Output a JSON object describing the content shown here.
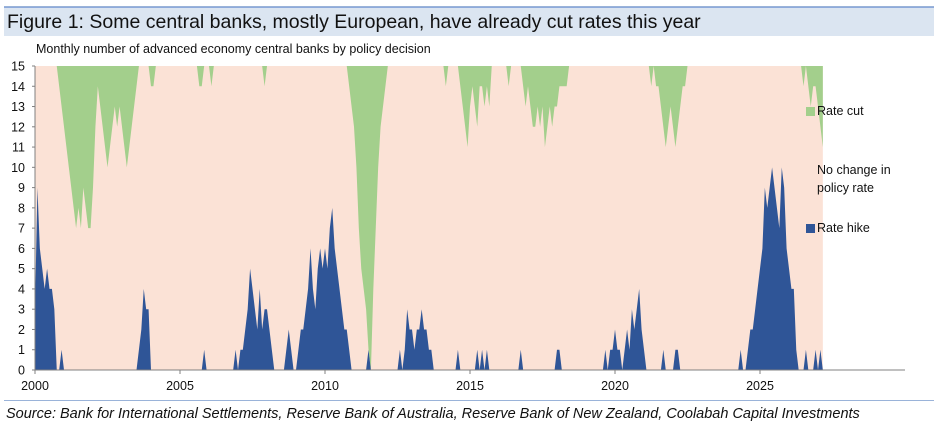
{
  "header": {
    "title": "Figure 1: Some central banks, mostly European, have already cut rates this year",
    "subtitle": "Monthly number of advanced economy central banks by policy decision"
  },
  "source": "Source: Bank for International Settlements, Reserve Bank of Australia, Reserve Bank of New Zealand, Coolabah Capital Investments",
  "colors": {
    "cut": "#a3cf8c",
    "no_change": "#fbe2d6",
    "hike": "#2f5597",
    "axis": "#808080",
    "title_bg": "#dbe5f1"
  },
  "chart_data": {
    "type": "area",
    "stacked": true,
    "title": "Monthly number of advanced economy central banks by policy decision",
    "ylim": [
      0,
      15
    ],
    "yticks": [
      "0",
      "1",
      "2",
      "3",
      "4",
      "5",
      "6",
      "7",
      "8",
      "9",
      "10",
      "11",
      "12",
      "13",
      "14",
      "15"
    ],
    "xlim": [
      2000,
      2030
    ],
    "xticks": [
      "2000",
      "2005",
      "2010",
      "2015",
      "2020",
      "2025"
    ],
    "total_banks": 15,
    "x_start": 2000.0,
    "x_step_months": 1,
    "series": [
      {
        "name": "Rate cut",
        "color_key": "cut"
      },
      {
        "name": "No change in policy rate",
        "color_key": "no_change"
      },
      {
        "name": "Rate hike",
        "color_key": "hike"
      }
    ],
    "legend": [
      {
        "label_lines": [
          "Rate cut"
        ],
        "color_key": "cut"
      },
      {
        "label_lines": [
          "No change in",
          "policy rate"
        ],
        "color_key": "no_change"
      },
      {
        "label_lines": [
          "Rate hike"
        ],
        "color_key": "hike"
      }
    ],
    "hike_values": [
      3,
      9,
      6,
      5,
      4,
      5,
      4,
      4,
      3,
      0,
      0,
      1,
      0,
      0,
      0,
      0,
      0,
      0,
      0,
      0,
      0,
      0,
      0,
      0,
      0,
      0,
      0,
      0,
      0,
      0,
      0,
      0,
      0,
      0,
      0,
      0,
      0,
      0,
      0,
      0,
      0,
      0,
      0,
      1,
      2,
      4,
      3,
      3,
      0,
      0,
      0,
      0,
      0,
      0,
      0,
      0,
      0,
      0,
      0,
      0,
      0,
      0,
      0,
      0,
      0,
      0,
      0,
      0,
      0,
      0,
      1,
      0,
      0,
      0,
      0,
      0,
      0,
      0,
      0,
      0,
      0,
      0,
      0,
      1,
      0,
      1,
      1,
      2,
      3,
      5,
      4,
      3,
      2,
      4,
      2,
      3,
      3,
      2,
      1,
      0,
      0,
      0,
      0,
      0,
      1,
      2,
      1,
      0,
      0,
      1,
      2,
      2,
      3,
      4,
      6,
      4,
      3,
      5,
      6,
      5,
      6,
      5,
      7,
      8,
      6,
      5,
      4,
      3,
      2,
      2,
      1,
      0,
      0,
      0,
      0,
      0,
      0,
      0,
      1,
      0,
      0,
      0,
      0,
      0,
      0,
      0,
      0,
      0,
      0,
      0,
      0,
      1,
      0,
      1,
      3,
      2,
      2,
      1,
      2,
      2,
      3,
      2,
      2,
      1,
      1,
      0,
      0,
      0,
      0,
      0,
      0,
      0,
      0,
      0,
      0,
      1,
      0,
      0,
      0,
      0,
      0,
      0,
      0,
      1,
      0,
      1,
      0,
      1,
      0,
      0,
      0,
      0,
      0,
      0,
      0,
      0,
      0,
      0,
      0,
      0,
      0,
      1,
      0,
      0,
      0,
      0,
      0,
      0,
      0,
      0,
      0,
      0,
      0,
      0,
      0,
      0,
      1,
      1,
      0,
      0,
      0,
      0,
      0,
      0,
      0,
      0,
      0,
      0,
      0,
      0,
      0,
      0,
      0,
      0,
      0,
      0,
      1,
      0,
      1,
      1,
      2,
      1,
      1,
      0,
      1,
      2,
      1,
      3,
      2,
      3,
      4,
      2,
      1,
      0,
      0,
      0,
      0,
      0,
      0,
      0,
      1,
      0,
      0,
      0,
      0,
      1,
      1,
      0,
      0,
      0,
      0,
      0,
      0,
      0,
      0,
      0,
      0,
      0,
      0,
      0,
      0,
      0,
      0,
      0,
      0,
      0,
      0,
      0,
      0,
      0,
      0,
      0,
      1,
      0,
      0,
      1,
      2,
      2,
      3,
      4,
      5,
      6,
      9,
      8,
      9,
      10,
      9,
      8,
      7,
      10,
      9,
      6,
      5,
      4,
      4,
      1,
      0,
      0,
      0,
      1,
      0,
      0,
      0,
      1,
      0,
      1,
      0
    ],
    "cut_values": [
      0,
      0,
      0,
      0,
      0,
      0,
      0,
      0,
      0,
      0,
      1,
      2,
      3,
      4,
      5,
      6,
      7,
      8,
      7,
      8,
      6,
      7,
      8,
      8,
      6,
      3,
      1,
      2,
      3,
      4,
      5,
      4,
      3,
      2,
      3,
      2,
      3,
      4,
      5,
      4,
      3,
      2,
      1,
      0,
      0,
      0,
      0,
      0,
      1,
      1,
      0,
      0,
      0,
      0,
      0,
      0,
      0,
      0,
      0,
      0,
      0,
      0,
      0,
      0,
      0,
      0,
      0,
      0,
      1,
      1,
      0,
      0,
      0,
      1,
      0,
      0,
      0,
      0,
      0,
      0,
      0,
      0,
      0,
      0,
      0,
      0,
      0,
      0,
      0,
      0,
      0,
      0,
      0,
      0,
      0,
      1,
      0,
      0,
      0,
      0,
      0,
      0,
      0,
      0,
      0,
      0,
      0,
      0,
      0,
      0,
      0,
      0,
      0,
      0,
      0,
      0,
      0,
      0,
      0,
      0,
      0,
      0,
      0,
      0,
      0,
      0,
      0,
      0,
      0,
      0,
      1,
      2,
      3,
      5,
      8,
      10,
      11,
      12,
      14,
      15,
      11,
      8,
      5,
      3,
      2,
      1,
      0,
      0,
      0,
      0,
      0,
      0,
      0,
      0,
      0,
      0,
      0,
      0,
      0,
      0,
      0,
      0,
      0,
      0,
      0,
      0,
      0,
      0,
      0,
      0,
      1,
      0,
      0,
      0,
      0,
      0,
      1,
      2,
      3,
      4,
      2,
      1,
      2,
      3,
      1,
      1,
      2,
      1,
      2,
      0,
      0,
      0,
      0,
      0,
      0,
      0,
      1,
      0,
      0,
      0,
      0,
      0,
      1,
      2,
      1,
      2,
      3,
      3,
      2,
      3,
      2,
      4,
      3,
      2,
      3,
      2,
      2,
      1,
      1,
      1,
      1,
      0,
      0,
      0,
      0,
      0,
      0,
      0,
      0,
      0,
      0,
      0,
      0,
      0,
      0,
      0,
      0,
      0,
      0,
      0,
      0,
      0,
      0,
      0,
      0,
      0,
      0,
      0,
      0,
      0,
      0,
      0,
      0,
      0,
      0,
      1,
      0,
      1,
      1,
      2,
      3,
      4,
      3,
      2,
      3,
      4,
      3,
      2,
      1,
      1,
      0,
      0,
      0,
      0,
      0,
      0,
      0,
      0,
      0,
      0,
      0,
      0,
      0,
      0,
      0,
      0,
      0,
      0,
      0,
      0,
      0,
      0,
      0,
      0,
      0,
      0,
      0,
      0,
      0,
      0,
      0,
      0,
      0,
      0,
      0,
      0,
      0,
      0,
      0,
      0,
      0,
      0,
      0,
      0,
      0,
      0,
      0,
      0,
      1,
      0,
      1,
      2,
      1,
      1,
      2,
      3,
      4,
      2,
      1,
      0
    ]
  }
}
